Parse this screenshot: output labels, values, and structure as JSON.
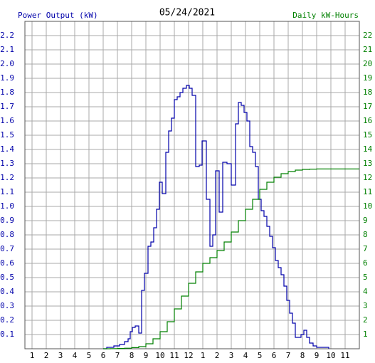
{
  "chart_data": {
    "type": "step-line",
    "title": "05/24/2021",
    "ylabel": "Power Output (kW)",
    "y2label": "Daily kW-Hours",
    "ylabel_color": "#0000aa",
    "y2label_color": "#008000",
    "grid": true,
    "xlim": [
      0.5,
      24
    ],
    "xticks": [
      1,
      2,
      3,
      4,
      5,
      6,
      7,
      8,
      9,
      10,
      11,
      12,
      {
        "value": 13,
        "label": "1"
      },
      {
        "value": 14,
        "label": "2"
      },
      {
        "value": 15,
        "label": "3"
      },
      {
        "value": 16,
        "label": "4"
      },
      {
        "value": 17,
        "label": "5"
      },
      {
        "value": 18,
        "label": "6"
      },
      {
        "value": 19,
        "label": "7"
      },
      {
        "value": 20,
        "label": "8"
      },
      {
        "value": 21,
        "label": "9"
      },
      {
        "value": 22,
        "label": "10"
      },
      {
        "value": 23,
        "label": "11"
      }
    ],
    "ylim": [
      0,
      2.3
    ],
    "yticks": [
      0.1,
      0.2,
      0.3,
      0.4,
      0.5,
      0.6,
      0.7,
      0.8,
      0.9,
      {
        "value": 1,
        "label": "1.0"
      },
      1.1,
      1.2,
      1.3,
      1.4,
      1.5,
      1.6,
      1.7,
      1.8,
      1.9,
      {
        "value": 2,
        "label": "2.0"
      },
      2.1,
      2.2
    ],
    "y2lim": [
      0,
      23
    ],
    "y2ticks": [
      1,
      2,
      3,
      4,
      5,
      6,
      7,
      8,
      9,
      10,
      11,
      12,
      13,
      14,
      15,
      16,
      17,
      18,
      19,
      20,
      21,
      22
    ],
    "series": [
      {
        "name": "Power Output (kW)",
        "color": "#0000aa",
        "x": [
          6.0,
          6.25,
          6.75,
          7.15,
          7.5,
          7.75,
          7.9,
          8.05,
          8.25,
          8.5,
          8.7,
          8.9,
          9.15,
          9.35,
          9.55,
          9.75,
          9.95,
          10.15,
          10.4,
          10.6,
          10.8,
          11.0,
          11.2,
          11.4,
          11.6,
          11.85,
          12.05,
          12.25,
          12.5,
          12.75,
          12.95,
          13.25,
          13.5,
          13.7,
          13.9,
          14.15,
          14.4,
          14.7,
          15.0,
          15.3,
          15.5,
          15.7,
          15.9,
          16.1,
          16.3,
          16.5,
          16.7,
          16.9,
          17.1,
          17.3,
          17.5,
          17.7,
          17.9,
          18.1,
          18.3,
          18.5,
          18.7,
          18.9,
          19.1,
          19.3,
          19.5,
          19.7,
          19.9,
          20.1,
          20.3,
          20.5,
          20.75,
          21.0,
          21.25,
          21.5,
          21.85
        ],
        "values": [
          0.0,
          0.01,
          0.02,
          0.03,
          0.05,
          0.07,
          0.12,
          0.15,
          0.16,
          0.11,
          0.41,
          0.53,
          0.72,
          0.75,
          0.85,
          0.98,
          1.17,
          1.09,
          1.38,
          1.53,
          1.62,
          1.75,
          1.77,
          1.8,
          1.83,
          1.85,
          1.83,
          1.78,
          1.28,
          1.29,
          1.46,
          1.05,
          0.72,
          0.8,
          1.25,
          0.96,
          1.31,
          1.3,
          1.15,
          1.58,
          1.73,
          1.71,
          1.66,
          1.6,
          1.42,
          1.38,
          1.28,
          1.05,
          0.97,
          0.93,
          0.86,
          0.79,
          0.71,
          0.62,
          0.57,
          0.52,
          0.44,
          0.34,
          0.25,
          0.18,
          0.08,
          0.08,
          0.1,
          0.13,
          0.08,
          0.04,
          0.02,
          0.01,
          0.01,
          0.01,
          0.0
        ]
      },
      {
        "name": "Daily kW-Hours",
        "color": "#008000",
        "axis": "y2",
        "x": [
          6.0,
          6.5,
          7.0,
          7.5,
          8.0,
          8.5,
          9.0,
          9.5,
          10.0,
          10.5,
          11.0,
          11.5,
          12.0,
          12.5,
          13.0,
          13.5,
          14.0,
          14.5,
          15.0,
          15.5,
          16.0,
          16.5,
          17.0,
          17.5,
          18.0,
          18.5,
          19.0,
          19.5,
          20.0,
          20.5,
          21.0,
          24.0
        ],
        "values": [
          0,
          0.01,
          0.02,
          0.04,
          0.08,
          0.15,
          0.35,
          0.7,
          1.2,
          1.9,
          2.8,
          3.7,
          4.6,
          5.4,
          6.0,
          6.4,
          6.9,
          7.5,
          8.2,
          9.0,
          9.8,
          10.5,
          11.2,
          11.7,
          12.05,
          12.3,
          12.45,
          12.55,
          12.6,
          12.62,
          12.63,
          12.63
        ]
      }
    ]
  }
}
